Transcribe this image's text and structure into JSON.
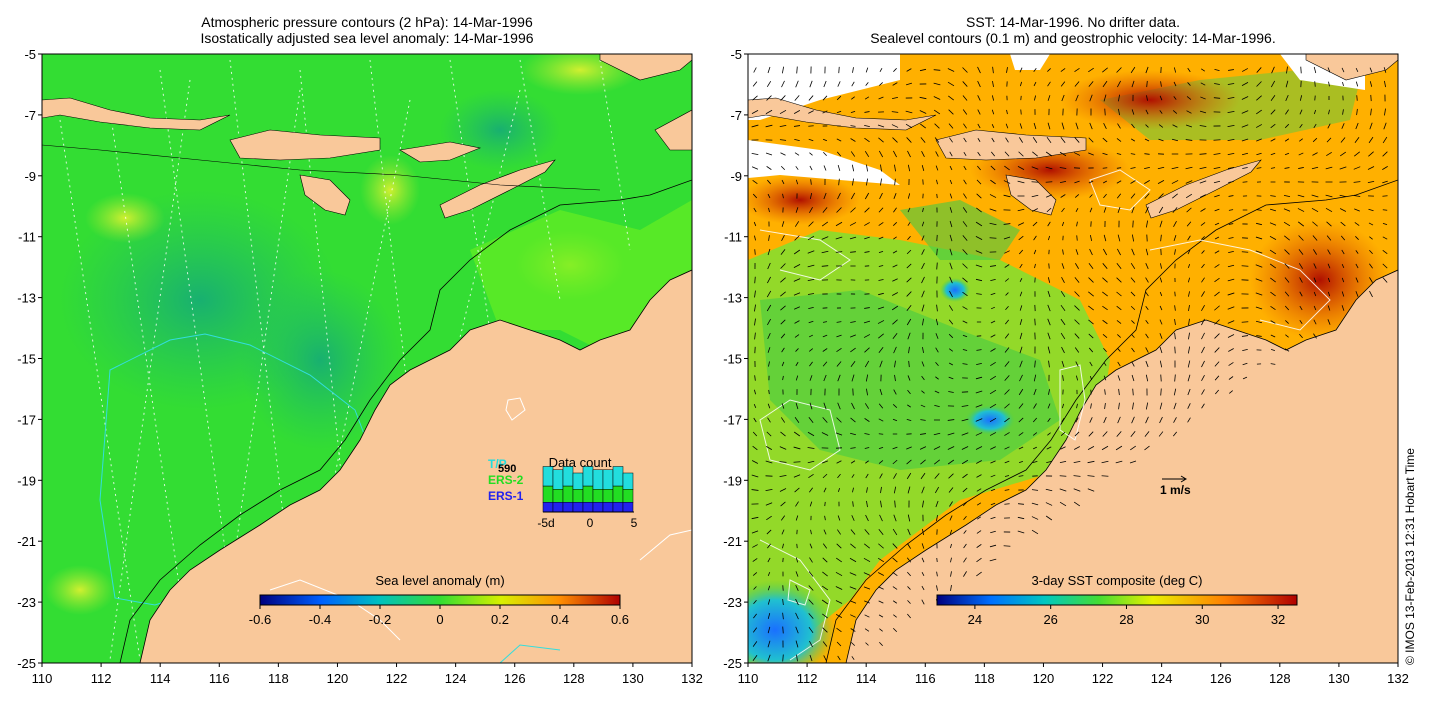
{
  "left_panel": {
    "title_line1": "Atmospheric pressure contours (2 hPa): 14-Mar-1996",
    "title_line2": "Isostatically adjusted sea level anomaly: 14-Mar-1996",
    "colorbar_label": "Sea level anomaly (m)",
    "colorbar_ticks": [
      "-0.6",
      "-0.4",
      "-0.2",
      "0",
      "0.2",
      "0.4",
      "0.6"
    ],
    "legend": {
      "satellites": [
        {
          "label": "T/P",
          "color": "#22dddd"
        },
        {
          "label": "ERS-2",
          "color": "#22dd22"
        },
        {
          "label": "ERS-1",
          "color": "#2222ee"
        }
      ],
      "extra_label": "590",
      "data_count_title": "Data count",
      "data_count_ticks": [
        "-5d",
        "0",
        "5"
      ],
      "data_count_bars": [
        {
          "day": -4,
          "ers1": 3,
          "ers2": 5,
          "tp": 6
        },
        {
          "day": -3,
          "ers1": 3,
          "ers2": 4,
          "tp": 6
        },
        {
          "day": -2,
          "ers1": 3,
          "ers2": 5,
          "tp": 6
        },
        {
          "day": -1,
          "ers1": 3,
          "ers2": 4,
          "tp": 5
        },
        {
          "day": 0,
          "ers1": 3,
          "ers2": 5,
          "tp": 6
        },
        {
          "day": 1,
          "ers1": 3,
          "ers2": 4,
          "tp": 6
        },
        {
          "day": 2,
          "ers1": 3,
          "ers2": 4,
          "tp": 6
        },
        {
          "day": 3,
          "ers1": 3,
          "ers2": 5,
          "tp": 6
        },
        {
          "day": 4,
          "ers1": 3,
          "ers2": 4,
          "tp": 5
        }
      ]
    }
  },
  "right_panel": {
    "title_line1": "SST: 14-Mar-1996. No drifter data.",
    "title_line2": "Sealevel contours (0.1 m) and geostrophic velocity: 14-Mar-1996.",
    "colorbar_label": "3-day SST composite (deg C)",
    "colorbar_ticks": [
      "24",
      "26",
      "28",
      "30",
      "32"
    ],
    "velocity_scale_label": "1 m/s"
  },
  "axes": {
    "lon_ticks": [
      "110",
      "112",
      "114",
      "116",
      "118",
      "120",
      "122",
      "124",
      "126",
      "128",
      "130",
      "132"
    ],
    "lat_ticks": [
      "-5",
      "-7",
      "-9",
      "-11",
      "-13",
      "-15",
      "-17",
      "-19",
      "-21",
      "-23",
      "-25"
    ],
    "lon_range": [
      110,
      132
    ],
    "lat_range": [
      -25,
      -5
    ]
  },
  "copyright": "© IMOS 13-Feb-2013 12:31 Hobart Time",
  "colors": {
    "land": "#f9c89a",
    "sla_base": "#33dd33",
    "sst_base": "#ffb000"
  }
}
